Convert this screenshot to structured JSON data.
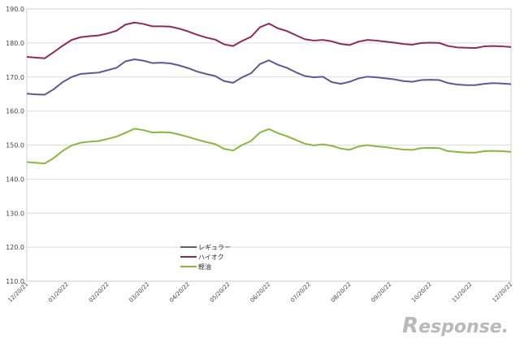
{
  "chart_data": {
    "type": "line",
    "title": "",
    "xlabel": "",
    "ylabel": "",
    "ylim": [
      110,
      190
    ],
    "yticks": [
      110.0,
      120.0,
      130.0,
      140.0,
      150.0,
      160.0,
      170.0,
      180.0,
      190.0
    ],
    "grid": true,
    "legend_position": "center-left",
    "x_tick_labels": [
      "12/20/21",
      "01/20/22",
      "02/20/22",
      "03/20/22",
      "04/20/22",
      "05/20/22",
      "06/20/22",
      "07/20/22",
      "08/20/22",
      "09/20/22",
      "10/20/22",
      "11/20/22",
      "12/20/22"
    ],
    "series": [
      {
        "name": "レギュラー",
        "color": "#5a5a96",
        "values": [
          165.1,
          164.9,
          164.8,
          166.4,
          168.5,
          170.0,
          170.9,
          171.1,
          171.3,
          172.0,
          172.7,
          174.6,
          175.2,
          174.8,
          174.1,
          174.2,
          174.0,
          173.4,
          172.6,
          171.6,
          170.9,
          170.3,
          168.8,
          168.3,
          169.9,
          171.1,
          173.8,
          174.9,
          173.6,
          172.7,
          171.4,
          170.3,
          169.9,
          170.1,
          168.5,
          168.0,
          168.6,
          169.6,
          170.1,
          169.9,
          169.6,
          169.3,
          168.8,
          168.6,
          169.1,
          169.2,
          169.1,
          168.2,
          167.8,
          167.6,
          167.6,
          168.0,
          168.2,
          168.1,
          167.9
        ]
      },
      {
        "name": "ハイオク",
        "color": "#8e2b5e",
        "values": [
          175.9,
          175.7,
          175.5,
          177.3,
          179.2,
          180.9,
          181.7,
          182.0,
          182.2,
          182.8,
          183.6,
          185.4,
          186.0,
          185.6,
          184.9,
          184.9,
          184.8,
          184.2,
          183.4,
          182.4,
          181.6,
          181.0,
          179.6,
          179.1,
          180.6,
          181.8,
          184.6,
          185.7,
          184.3,
          183.5,
          182.3,
          181.1,
          180.7,
          180.9,
          180.5,
          179.7,
          179.4,
          180.4,
          180.9,
          180.7,
          180.4,
          180.1,
          179.7,
          179.5,
          180.0,
          180.1,
          180.0,
          179.1,
          178.7,
          178.6,
          178.5,
          179.0,
          179.1,
          179.0,
          178.8
        ]
      },
      {
        "name": "軽油",
        "color": "#89b83d",
        "values": [
          145.0,
          144.8,
          144.6,
          146.2,
          148.3,
          149.9,
          150.7,
          151.0,
          151.2,
          151.8,
          152.5,
          153.6,
          154.8,
          154.4,
          153.7,
          153.8,
          153.7,
          153.1,
          152.4,
          151.6,
          150.9,
          150.3,
          148.9,
          148.4,
          150.0,
          151.2,
          153.7,
          154.7,
          153.5,
          152.6,
          151.5,
          150.4,
          149.9,
          150.2,
          149.8,
          149.0,
          148.6,
          149.6,
          150.0,
          149.6,
          149.4,
          149.0,
          148.7,
          148.6,
          149.1,
          149.2,
          149.1,
          148.2,
          148.0,
          147.8,
          147.8,
          148.2,
          148.3,
          148.2,
          148.0
        ]
      }
    ]
  },
  "watermark": {
    "text": "esponse.",
    "initial": "R"
  }
}
